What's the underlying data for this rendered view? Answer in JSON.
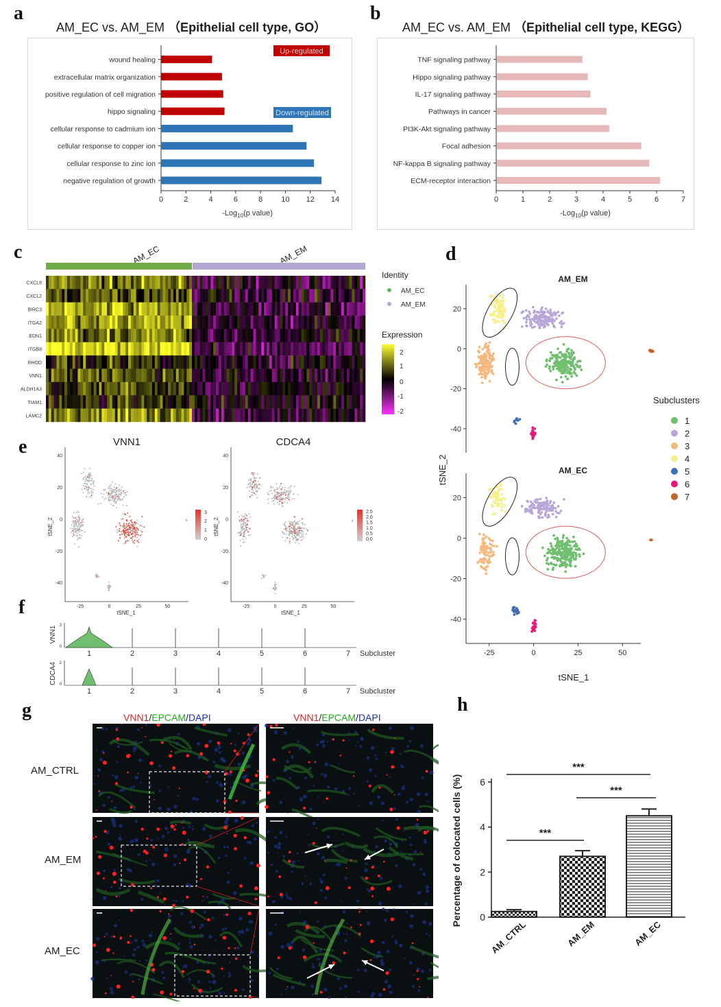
{
  "panel_labels": {
    "a": "a",
    "b": "b",
    "c": "c",
    "d": "d",
    "e": "e",
    "f": "f",
    "g": "g",
    "h": "h"
  },
  "a": {
    "title_main": "AM_EC vs. AM_EM",
    "title_paren": "（Epithelial cell type, GO）",
    "xlabel": "-Log",
    "xlabel_sub": "10",
    "xlabel_end": "(p value)",
    "legend_up": "Up-regulated",
    "legend_down": "Down-regulated"
  },
  "b": {
    "title_main": "AM_EC vs. AM_EM",
    "title_paren": "（Epithelial cell type, KEGG）",
    "xlabel": "-Log",
    "xlabel_sub": "10",
    "xlabel_end": "(p value)"
  },
  "c": {
    "group1": "AM_EC",
    "group2": "AM_EM",
    "identity_title": "Identity",
    "identity_items": [
      "AM_EC",
      "AM_EM"
    ],
    "expression_title": "Expression",
    "scale_ticks": [
      "2",
      "1",
      "0",
      "-1",
      "-2"
    ]
  },
  "d": {
    "top_title": "AM_EM",
    "bottom_title": "AM_EC",
    "xlabel": "tSNE_1",
    "ylabel": "tSNE_2",
    "legend_title": "Subclusters",
    "clusters": [
      "1",
      "2",
      "3",
      "4",
      "5",
      "6",
      "7"
    ]
  },
  "e": {
    "gene1": "VNN1",
    "gene2": "CDCA4",
    "xlabel": "tSNE_1",
    "ylabel": "tSNE_2",
    "scale1": [
      "3",
      "2",
      "1",
      "0"
    ],
    "scale2": [
      "2.5",
      "2.0",
      "1.5",
      "1.0",
      "0.5",
      "0.0"
    ]
  },
  "f": {
    "gene1": "VNN1",
    "gene2": "CDCA4",
    "xlabel": "Subcluster"
  },
  "g": {
    "header_vnn1": "VNN1",
    "header_epcam": "EPCAM",
    "header_dapi": "DAPI",
    "sep": "/",
    "rows": [
      "AM_CTRL",
      "AM_EM",
      "AM_EC"
    ]
  },
  "h": {
    "ylabel": "Percentage of colocated cells (%)",
    "sig": "***"
  },
  "colors": {
    "up": "#c00000",
    "down": "#2e75b6",
    "kegg": "#e6b8b7",
    "ec_green": "#70ad47",
    "em_purple": "#b4a7d6",
    "c1": "#6fbf6f",
    "c2": "#b9a6d8",
    "c3": "#f5b97f",
    "c4": "#f7f08a",
    "c5": "#3f6fb5",
    "c6": "#e6197a",
    "c7": "#c0662a"
  },
  "chart_data": [
    {
      "id": "a",
      "type": "bar",
      "orientation": "horizontal",
      "categories": [
        "wound healing",
        "extracellular matrix organization",
        "positive regulation of cell migration",
        "hippo signaling",
        "cellular response to cadmium ion",
        "cellular response to copper ion",
        "cellular response to zinc ion",
        "negative regulation of growth"
      ],
      "values": [
        4.1,
        4.9,
        5.0,
        5.1,
        10.6,
        11.7,
        12.3,
        12.9
      ],
      "groups": [
        "Up-regulated",
        "Up-regulated",
        "Up-regulated",
        "Up-regulated",
        "Down-regulated",
        "Down-regulated",
        "Down-regulated",
        "Down-regulated"
      ],
      "xlim": [
        0,
        14
      ],
      "xticks": [
        "0",
        "2",
        "4",
        "6",
        "8",
        "10",
        "12",
        "14"
      ]
    },
    {
      "id": "b",
      "type": "bar",
      "orientation": "horizontal",
      "categories": [
        "TNF signaling pathway",
        "Hippo signaling pathway",
        "IL-17 signaling pathway",
        "Pathways in cancer",
        "PI3K-Akt signaling pathway",
        "Focal adhesion",
        "NF-kappa B signaling pathway",
        "ECM-receptor interaction"
      ],
      "values": [
        3.2,
        3.4,
        3.5,
        4.1,
        4.2,
        5.4,
        5.7,
        6.1
      ],
      "xlim": [
        0,
        7
      ],
      "xticks": [
        "0",
        "1",
        "2",
        "3",
        "4",
        "5",
        "6",
        "7"
      ]
    },
    {
      "id": "c",
      "type": "heatmap",
      "rows": [
        "CXCL8",
        "CXCL2",
        "BIRC3",
        "ITGA2",
        "EDN1",
        "ITGB8",
        "RHOD",
        "VNN1",
        "ALDH1A3",
        "TIAM1",
        "LAMC2"
      ],
      "columns": [
        "AM_EC",
        "AM_EM"
      ],
      "mean_expression": [
        [
          0.9,
          -0.4
        ],
        [
          0.6,
          -0.2
        ],
        [
          1.3,
          -0.5
        ],
        [
          1.2,
          -0.4
        ],
        [
          1.0,
          -0.3
        ],
        [
          1.8,
          -0.6
        ],
        [
          0.4,
          -0.2
        ],
        [
          0.6,
          -0.3
        ],
        [
          0.5,
          -0.2
        ],
        [
          0.3,
          -0.1
        ],
        [
          1.1,
          -0.4
        ]
      ],
      "range": [
        -2,
        2
      ]
    },
    {
      "id": "d",
      "type": "scatter",
      "panels": [
        "AM_EM",
        "AM_EC"
      ],
      "xlim": [
        -38,
        68
      ],
      "ylim": [
        -52,
        32
      ],
      "xticks": [
        "-25",
        "0",
        "25",
        "50"
      ],
      "yticks": [
        "20",
        "0",
        "-20",
        "-40"
      ],
      "cluster_centers": {
        "1": [
          17,
          -7
        ],
        "2": [
          5,
          15
        ],
        "3": [
          -27,
          -7
        ],
        "4": [
          -20,
          20
        ],
        "5": [
          -10,
          -36
        ],
        "6": [
          0,
          -43
        ],
        "7": [
          66,
          -1
        ]
      }
    },
    {
      "id": "e",
      "type": "scatter",
      "panels": [
        "VNN1",
        "CDCA4"
      ],
      "xticks": [
        "-25",
        "0",
        "25",
        "50"
      ],
      "yticks": [
        "40",
        "20",
        "0",
        "-20",
        "-40"
      ]
    },
    {
      "id": "f",
      "type": "area",
      "subtype": "violin",
      "genes": [
        "VNN1",
        "CDCA4"
      ],
      "categories": [
        "1",
        "2",
        "3",
        "4",
        "5",
        "6",
        "7"
      ]
    },
    {
      "id": "h",
      "type": "bar",
      "categories": [
        "AM_CTRL",
        "AM_EM",
        "AM_EC"
      ],
      "values": [
        0.25,
        2.7,
        4.5
      ],
      "errors": [
        0.08,
        0.25,
        0.3
      ],
      "ylim": [
        0,
        6
      ],
      "yticks": [
        "0",
        "2",
        "4",
        "6"
      ],
      "ylabel": "Percentage of colocated cells (%)",
      "significance": [
        [
          "AM_CTRL",
          "AM_EM",
          "***"
        ],
        [
          "AM_EM",
          "AM_EC",
          "***"
        ],
        [
          "AM_CTRL",
          "AM_EC",
          "***"
        ]
      ]
    }
  ]
}
